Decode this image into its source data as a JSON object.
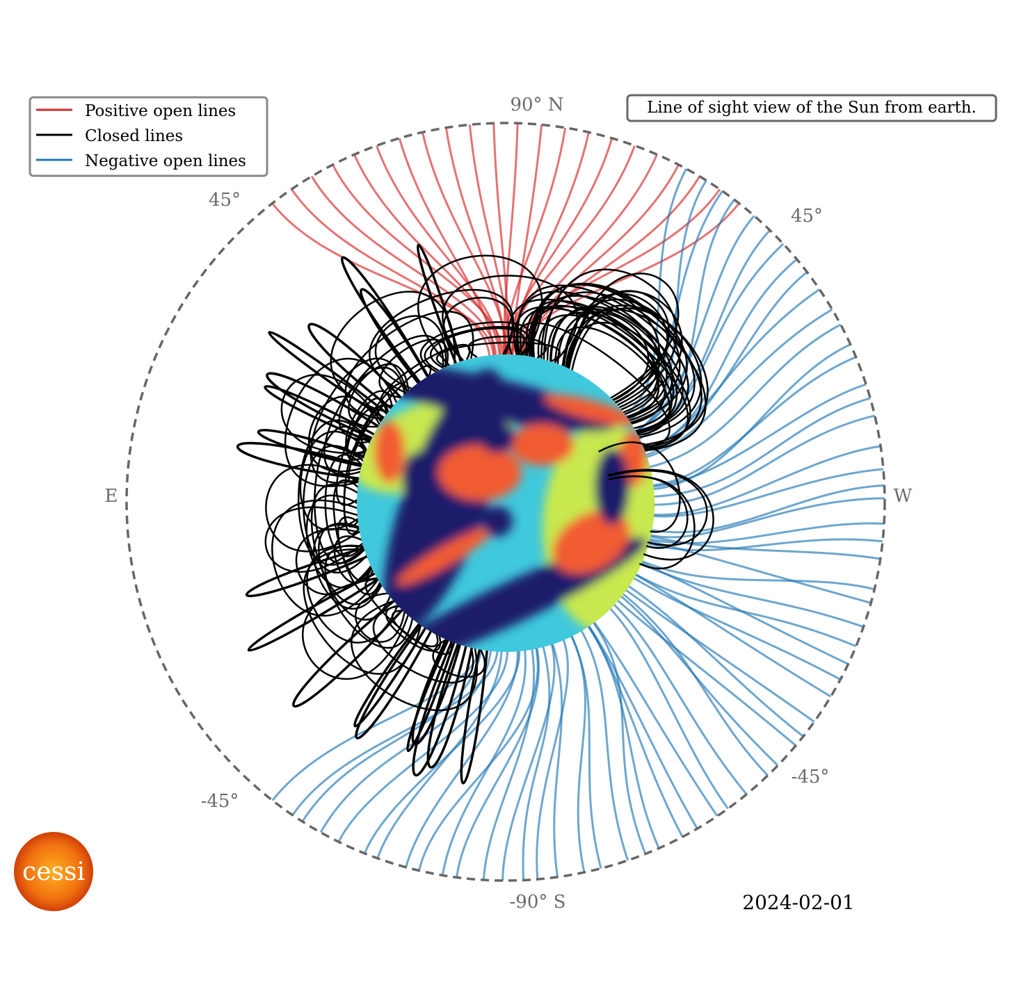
{
  "legend": {
    "items": [
      {
        "label": "Positive open lines",
        "color": "#d62728"
      },
      {
        "label": "Closed lines",
        "color": "#000000"
      },
      {
        "label": "Negative open lines",
        "color": "#1f77b4"
      }
    ]
  },
  "annotation": "Line of sight view of the Sun from earth.",
  "axis_labels": {
    "north": "90° N",
    "south": "-90° S",
    "east": "E",
    "west": "W",
    "north_east": "45°",
    "north_west": "45°",
    "south_east": "-45°",
    "south_west": "-45°"
  },
  "date": "2024-02-01",
  "logo": "cessi"
}
